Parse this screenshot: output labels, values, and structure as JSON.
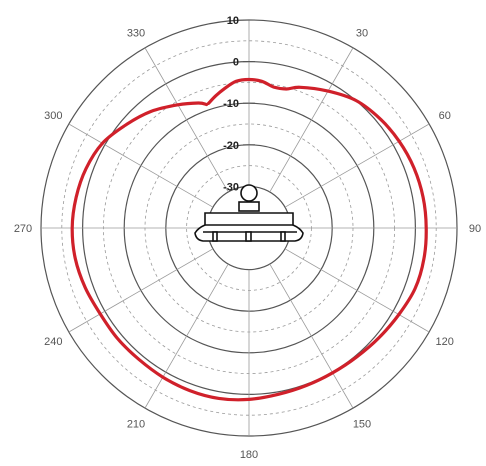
{
  "chart_data": {
    "type": "polar-line",
    "angle_unit": "deg",
    "angle_direction": "clockwise",
    "zero_at": "top",
    "angle_ticks": [
      0,
      30,
      60,
      90,
      120,
      150,
      180,
      210,
      240,
      270,
      300,
      330
    ],
    "angle_tick_labels": [
      "",
      "30",
      "60",
      "90",
      "120",
      "150",
      "180",
      "210",
      "240",
      "270",
      "300",
      "330"
    ],
    "radial_ticks": [
      10,
      0,
      -10,
      -20,
      -30
    ],
    "radial_tick_labels": [
      "10",
      "0",
      "-10",
      "-20",
      "-30"
    ],
    "rlim": [
      -40,
      10
    ],
    "grid": true,
    "series": [
      {
        "color": "#d0202a",
        "angles": [
          -18,
          -14,
          -10,
          -5,
          0,
          5,
          10,
          15,
          20,
          30,
          40,
          50,
          60,
          70,
          80,
          90,
          100,
          110,
          120,
          130,
          140,
          150,
          160,
          170,
          180,
          190,
          200,
          210,
          220,
          230,
          240,
          250,
          260,
          270,
          280,
          290,
          300,
          310,
          320,
          330,
          338,
          341
        ],
        "values": [
          -8.5,
          -7.2,
          -6.0,
          -4.6,
          -4.3,
          -4.6,
          -5.6,
          -5.4,
          -4.0,
          -2.0,
          0.0,
          1.0,
          1.7,
          2.2,
          2.5,
          2.6,
          2.7,
          2.5,
          1.6,
          0.9,
          0.4,
          0.2,
          0.3,
          0.6,
          1.2,
          1.6,
          1.6,
          1.4,
          1.2,
          1.3,
          1.3,
          1.9,
          2.4,
          2.5,
          2.2,
          1.7,
          0.7,
          -1.4,
          -3.4,
          -5.8,
          -7.6,
          -8.6
        ]
      }
    ]
  },
  "antenna_icon": "ceiling-mount-antenna-icon"
}
